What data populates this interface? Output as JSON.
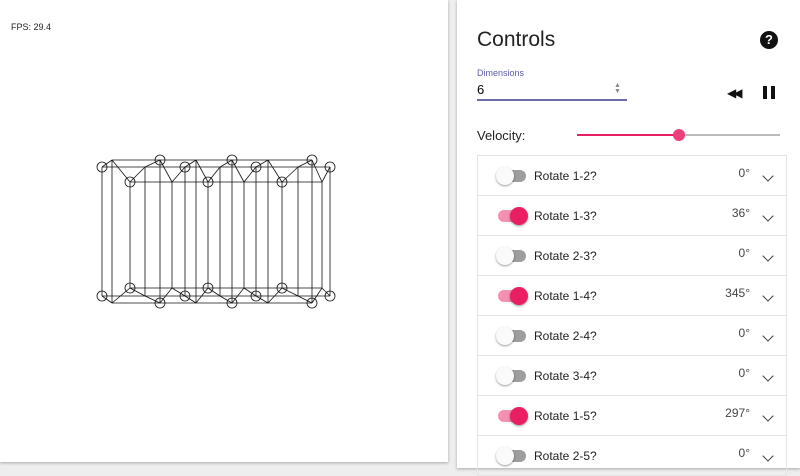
{
  "canvas": {
    "fps": "FPS: 29.4"
  },
  "controls": {
    "title": "Controls",
    "help_icon": "help-circle-icon",
    "dimensions": {
      "label": "Dimensions",
      "value": "6"
    },
    "velocity": {
      "label": "Velocity:",
      "value_percent": 50
    },
    "accent": "#e91e63",
    "rotations": [
      {
        "label": "Rotate 1-2?",
        "on": false,
        "angle": "0°"
      },
      {
        "label": "Rotate 1-3?",
        "on": true,
        "angle": "36°"
      },
      {
        "label": "Rotate 2-3?",
        "on": false,
        "angle": "0°"
      },
      {
        "label": "Rotate 1-4?",
        "on": true,
        "angle": "345°"
      },
      {
        "label": "Rotate 2-4?",
        "on": false,
        "angle": "0°"
      },
      {
        "label": "Rotate 3-4?",
        "on": false,
        "angle": "0°"
      },
      {
        "label": "Rotate 1-5?",
        "on": true,
        "angle": "297°"
      },
      {
        "label": "Rotate 2-5?",
        "on": false,
        "angle": "0°"
      }
    ]
  }
}
